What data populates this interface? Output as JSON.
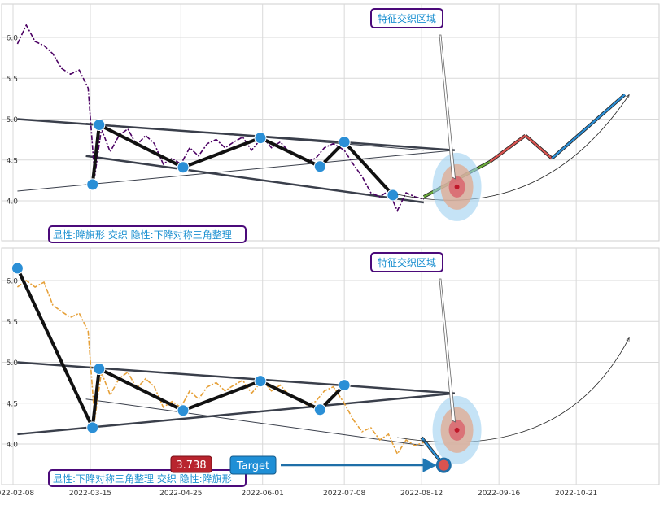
{
  "chart_data": [
    {
      "type": "line",
      "panel": "top",
      "ylim": [
        3.5,
        6.45
      ],
      "y_ticks": [
        "4.0",
        "4.5",
        "5.0",
        "5.5",
        "6.0"
      ],
      "grid": true,
      "price_series_color": "#4b0063",
      "price": {
        "x": [
          "2022-02-10",
          "2022-02-14",
          "2022-02-18",
          "2022-02-22",
          "2022-02-26",
          "2022-03-02",
          "2022-03-06",
          "2022-03-10",
          "2022-03-14",
          "2022-03-17",
          "2022-03-20",
          "2022-03-24",
          "2022-03-28",
          "2022-04-01",
          "2022-04-05",
          "2022-04-09",
          "2022-04-13",
          "2022-04-17",
          "2022-04-21",
          "2022-04-25",
          "2022-04-29",
          "2022-05-03",
          "2022-05-07",
          "2022-05-11",
          "2022-05-15",
          "2022-05-19",
          "2022-05-23",
          "2022-05-27",
          "2022-06-01",
          "2022-06-05",
          "2022-06-09",
          "2022-06-13",
          "2022-06-17",
          "2022-06-21",
          "2022-06-25",
          "2022-06-29",
          "2022-07-03",
          "2022-07-08",
          "2022-07-12",
          "2022-07-16",
          "2022-07-20",
          "2022-07-24",
          "2022-07-28",
          "2022-08-01",
          "2022-08-05",
          "2022-08-09",
          "2022-08-13"
        ],
        "y": [
          5.92,
          6.15,
          5.95,
          5.9,
          5.8,
          5.62,
          5.55,
          5.6,
          5.38,
          4.3,
          4.88,
          4.6,
          4.8,
          4.88,
          4.68,
          4.8,
          4.7,
          4.45,
          4.52,
          4.45,
          4.65,
          4.55,
          4.7,
          4.75,
          4.65,
          4.72,
          4.78,
          4.62,
          4.78,
          4.65,
          4.72,
          4.6,
          4.55,
          4.48,
          4.52,
          4.65,
          4.7,
          4.62,
          4.45,
          4.3,
          4.1,
          4.05,
          4.12,
          3.88,
          4.1,
          4.05,
          4.02
        ]
      },
      "pattern_points": [
        {
          "x": "2022-03-16",
          "y": 4.2
        },
        {
          "x": "2022-03-19",
          "y": 4.93
        },
        {
          "x": "2022-04-26",
          "y": 4.41
        },
        {
          "x": "2022-05-31",
          "y": 4.77
        },
        {
          "x": "2022-06-27",
          "y": 4.42
        },
        {
          "x": "2022-07-08",
          "y": 4.72
        },
        {
          "x": "2022-07-30",
          "y": 4.07
        }
      ],
      "projection": [
        {
          "x": "2022-08-13",
          "y": 4.05
        },
        {
          "x": "2022-09-12",
          "y": 4.48
        },
        {
          "x": "2022-09-28",
          "y": 4.8
        },
        {
          "x": "2022-10-10",
          "y": 4.52
        },
        {
          "x": "2022-11-12",
          "y": 5.3
        }
      ],
      "annotations": {
        "region_label": "特征交织区域",
        "pattern_label": "显性:降旗形 交织 隐性:下降对称三角整理"
      }
    },
    {
      "type": "line",
      "panel": "bottom",
      "ylim": [
        3.5,
        6.45
      ],
      "y_ticks": [
        "4.0",
        "4.5",
        "5.0",
        "5.5",
        "6.0"
      ],
      "grid": true,
      "x_ticks": [
        "2022-02-08",
        "2022-03-15",
        "2022-04-25",
        "2022-06-01",
        "2022-07-08",
        "2022-08-12",
        "2022-09-16",
        "2022-10-21"
      ],
      "price_series_color": "#e6a13a",
      "price": {
        "x": [
          "2022-02-10",
          "2022-02-14",
          "2022-02-18",
          "2022-02-22",
          "2022-02-26",
          "2022-03-02",
          "2022-03-06",
          "2022-03-10",
          "2022-03-14",
          "2022-03-17",
          "2022-03-20",
          "2022-03-24",
          "2022-03-28",
          "2022-04-01",
          "2022-04-05",
          "2022-04-09",
          "2022-04-13",
          "2022-04-17",
          "2022-04-21",
          "2022-04-25",
          "2022-04-29",
          "2022-05-03",
          "2022-05-07",
          "2022-05-11",
          "2022-05-15",
          "2022-05-19",
          "2022-05-23",
          "2022-05-27",
          "2022-06-01",
          "2022-06-05",
          "2022-06-09",
          "2022-06-13",
          "2022-06-17",
          "2022-06-21",
          "2022-06-25",
          "2022-06-29",
          "2022-07-03",
          "2022-07-08",
          "2022-07-12",
          "2022-07-16",
          "2022-07-20",
          "2022-07-24",
          "2022-07-28",
          "2022-08-01",
          "2022-08-05",
          "2022-08-09",
          "2022-08-13"
        ],
        "y": [
          5.92,
          6.0,
          5.92,
          5.98,
          5.7,
          5.62,
          5.55,
          5.6,
          5.38,
          4.3,
          4.88,
          4.6,
          4.8,
          4.88,
          4.68,
          4.8,
          4.7,
          4.45,
          4.52,
          4.45,
          4.65,
          4.55,
          4.7,
          4.75,
          4.65,
          4.72,
          4.78,
          4.62,
          4.78,
          4.65,
          4.72,
          4.6,
          4.55,
          4.48,
          4.52,
          4.65,
          4.7,
          4.5,
          4.3,
          4.15,
          4.2,
          4.05,
          4.12,
          3.88,
          4.05,
          3.98,
          4.02
        ]
      },
      "pattern_points": [
        {
          "x": "2022-02-10",
          "y": 6.15
        },
        {
          "x": "2022-03-16",
          "y": 4.2
        },
        {
          "x": "2022-03-19",
          "y": 4.92
        },
        {
          "x": "2022-04-26",
          "y": 4.41
        },
        {
          "x": "2022-05-31",
          "y": 4.77
        },
        {
          "x": "2022-06-27",
          "y": 4.42
        },
        {
          "x": "2022-07-08",
          "y": 4.72
        }
      ],
      "projection": [
        {
          "x": "2022-08-12",
          "y": 4.08
        },
        {
          "x": "2022-08-22",
          "y": 3.74
        }
      ],
      "target_value": "3.738",
      "annotations": {
        "region_label": "特征交织区域",
        "pattern_label": "显性:下降对称三角整理 交织 隐性:降旗形",
        "target_label": "Target",
        "target_value": "3.738"
      }
    }
  ]
}
